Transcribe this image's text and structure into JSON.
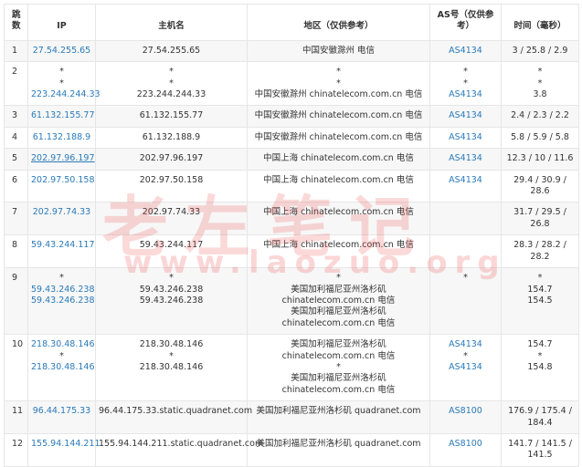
{
  "headers": [
    "跳数",
    "IP",
    "主机名",
    "地区（仅供参考）",
    "AS号（仅供参考）",
    "时间（毫秒）"
  ],
  "colors": {
    "link": "#2a7ab9",
    "stripe": "#f7f7f7",
    "watermark": "#f05050"
  },
  "watermark": {
    "title": "老左笔记",
    "url": "www.laozuo.org"
  },
  "rows": [
    {
      "hop": "1",
      "ip": [
        "27.54.255.65"
      ],
      "host": [
        "27.54.255.65"
      ],
      "region": [
        "中国安徽滁州 电信"
      ],
      "as": [
        "AS4134"
      ],
      "time": [
        "3 / 25.8 / 2.9"
      ]
    },
    {
      "hop": "2",
      "ip": [
        "*",
        "*",
        "223.244.244.33"
      ],
      "host": [
        "*",
        "*",
        "223.244.244.33"
      ],
      "region": [
        "*",
        "*",
        "中国安徽滁州 chinatelecom.com.cn 电信"
      ],
      "as": [
        "*",
        "*",
        "AS4134"
      ],
      "time": [
        "*",
        "*",
        "3.8"
      ]
    },
    {
      "hop": "3",
      "ip": [
        "61.132.155.77"
      ],
      "host": [
        "61.132.155.77"
      ],
      "region": [
        "中国安徽滁州 chinatelecom.com.cn 电信"
      ],
      "as": [
        "AS4134"
      ],
      "time": [
        "2.4 / 2.3 / 2.2"
      ]
    },
    {
      "hop": "4",
      "ip": [
        "61.132.188.9"
      ],
      "host": [
        "61.132.188.9"
      ],
      "region": [
        "中国安徽滁州 chinatelecom.com.cn 电信"
      ],
      "as": [
        "AS4134"
      ],
      "time": [
        "5.8 / 5.9 / 5.8"
      ]
    },
    {
      "hop": "5",
      "ip": [
        "202.97.96.197"
      ],
      "host": [
        "202.97.96.197"
      ],
      "region": [
        "中国上海 chinatelecom.com.cn 电信"
      ],
      "as": [
        "AS4134"
      ],
      "time": [
        "12.3 / 10 / 11.6"
      ],
      "hover": true
    },
    {
      "hop": "6",
      "ip": [
        "202.97.50.158"
      ],
      "host": [
        "202.97.50.158"
      ],
      "region": [
        "中国上海 chinatelecom.com.cn 电信"
      ],
      "as": [
        "AS4134"
      ],
      "time": [
        "29.4 / 30.9 / 28.6"
      ]
    },
    {
      "hop": "7",
      "ip": [
        "202.97.74.33"
      ],
      "host": [
        "202.97.74.33"
      ],
      "region": [
        "中国上海 chinatelecom.com.cn 电信"
      ],
      "as": [],
      "time": [
        "31.7 / 29.5 / 26.8"
      ]
    },
    {
      "hop": "8",
      "ip": [
        "59.43.244.117"
      ],
      "host": [
        "59.43.244.117"
      ],
      "region": [
        "中国上海 chinatelecom.com.cn 电信"
      ],
      "as": [],
      "time": [
        "28.3 / 28.2 / 28.2"
      ]
    },
    {
      "hop": "9",
      "ip": [
        "*",
        "59.43.246.238",
        "59.43.246.238"
      ],
      "host": [
        "*",
        "59.43.246.238",
        "59.43.246.238"
      ],
      "region": [
        "*",
        "美国加利福尼亚州洛杉矶 chinatelecom.com.cn 电信",
        "美国加利福尼亚州洛杉矶 chinatelecom.com.cn 电信"
      ],
      "as": [
        "*"
      ],
      "time": [
        "*",
        "154.7",
        "154.5"
      ]
    },
    {
      "hop": "10",
      "ip": [
        "218.30.48.146",
        "*",
        "218.30.48.146"
      ],
      "host": [
        "218.30.48.146",
        "*",
        "218.30.48.146"
      ],
      "region": [
        "美国加利福尼亚州洛杉矶 chinatelecom.com.cn 电信",
        "*",
        "美国加利福尼亚州洛杉矶 chinatelecom.com.cn 电信"
      ],
      "as": [
        "AS4134",
        "*",
        "AS4134"
      ],
      "time": [
        "154.7",
        "*",
        "154.8"
      ]
    },
    {
      "hop": "11",
      "ip": [
        "96.44.175.33"
      ],
      "host": [
        "96.44.175.33.static.quadranet.com"
      ],
      "region": [
        "美国加利福尼亚州洛杉矶 quadranet.com"
      ],
      "as": [
        "AS8100"
      ],
      "time": [
        "176.9 / 175.4 / 184.4"
      ]
    },
    {
      "hop": "12",
      "ip": [
        "155.94.144.211"
      ],
      "host": [
        "155.94.144.211.static.quadranet.com"
      ],
      "region": [
        "美国加利福尼亚州洛杉矶 quadranet.com"
      ],
      "as": [
        "AS8100"
      ],
      "time": [
        "141.7 / 141.5 / 141.5"
      ]
    }
  ]
}
